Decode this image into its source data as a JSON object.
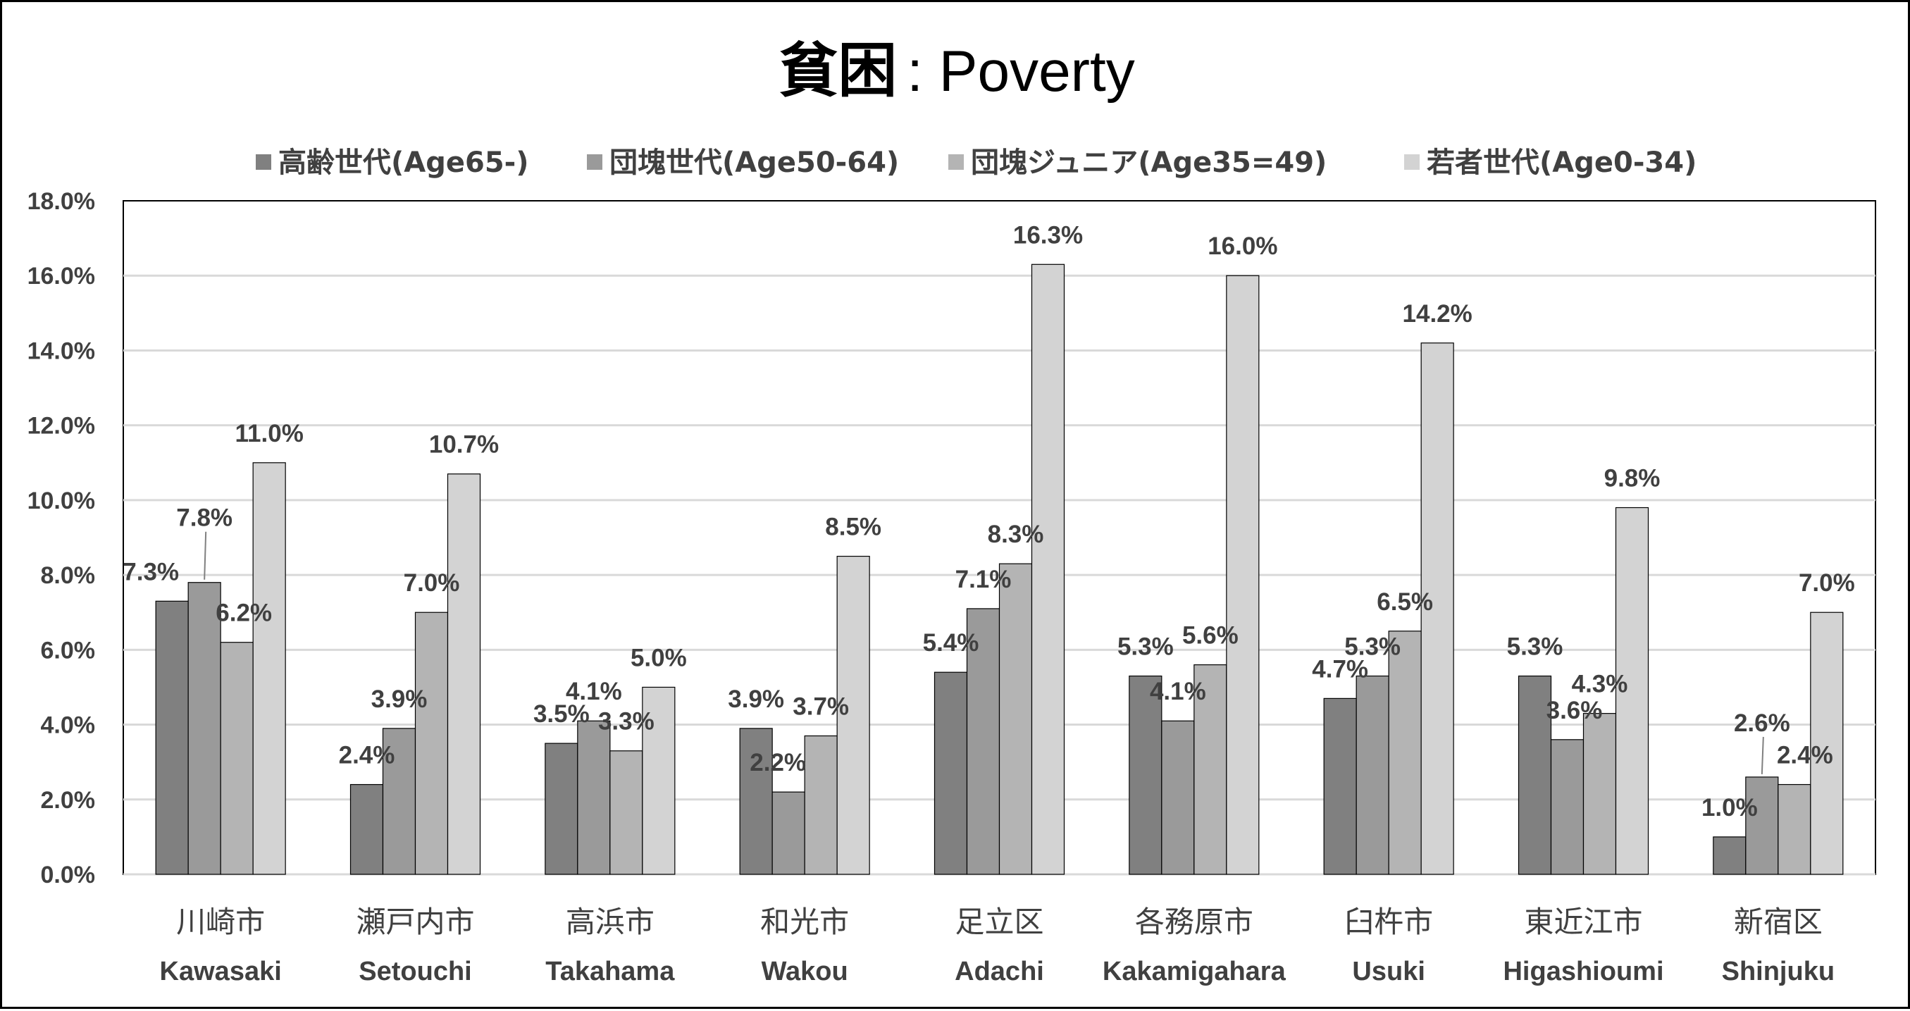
{
  "chart_data": {
    "type": "bar",
    "title": "貧困",
    "subtitle": ": Poverty",
    "categories": [
      "川崎市",
      "瀬戸内市",
      "高浜市",
      "和光市",
      "足立区",
      "各務原市",
      "臼杵市",
      "東近江市",
      "新宿区"
    ],
    "categories_en": [
      "Kawasaki",
      "Setouchi",
      "Takahama",
      "Wakou",
      "Adachi",
      "Kakamigahara",
      "Usuki",
      "Higashioumi",
      "Shinjuku"
    ],
    "series": [
      {
        "name": "高齢世代(Age65-)",
        "color": "#808080",
        "values": [
          7.3,
          2.4,
          3.5,
          3.9,
          5.4,
          5.3,
          4.7,
          5.3,
          1.0
        ]
      },
      {
        "name": "団塊世代(Age50-64)",
        "color": "#9a9a9a",
        "values": [
          7.8,
          3.9,
          4.1,
          2.2,
          7.1,
          4.1,
          5.3,
          3.6,
          2.6
        ]
      },
      {
        "name": "団塊ジュニア(Age35=49)",
        "color": "#b4b4b4",
        "values": [
          6.2,
          7.0,
          3.3,
          3.7,
          8.3,
          5.6,
          6.5,
          4.3,
          2.4
        ]
      },
      {
        "name": "若者世代(Age0-34)",
        "color": "#d3d3d3",
        "values": [
          11.0,
          10.7,
          5.0,
          8.5,
          16.3,
          16.0,
          14.2,
          9.8,
          7.0
        ]
      }
    ],
    "value_labels": [
      [
        "7.3%",
        "2.4%",
        "3.5%",
        "3.9%",
        "5.4%",
        "5.3%",
        "4.7%",
        "5.3%",
        "1.0%"
      ],
      [
        "7.8%",
        "3.9%",
        "4.1%",
        "2.2%",
        "7.1%",
        "4.1%",
        "5.3%",
        "3.6%",
        "2.6%"
      ],
      [
        "6.2%",
        "7.0%",
        "3.3%",
        "3.7%",
        "8.3%",
        "5.6%",
        "6.5%",
        "4.3%",
        "2.4%"
      ],
      [
        "11.0%",
        "10.7%",
        "5.0%",
        "8.5%",
        "16.3%",
        "16.0%",
        "14.2%",
        "9.8%",
        "7.0%"
      ]
    ],
    "y_ticks": [
      "0.0%",
      "2.0%",
      "4.0%",
      "6.0%",
      "8.0%",
      "10.0%",
      "12.0%",
      "14.0%",
      "16.0%",
      "18.0%"
    ],
    "ylim": [
      0,
      18
    ],
    "unit": "%",
    "grid": true,
    "legend_position": "top"
  }
}
